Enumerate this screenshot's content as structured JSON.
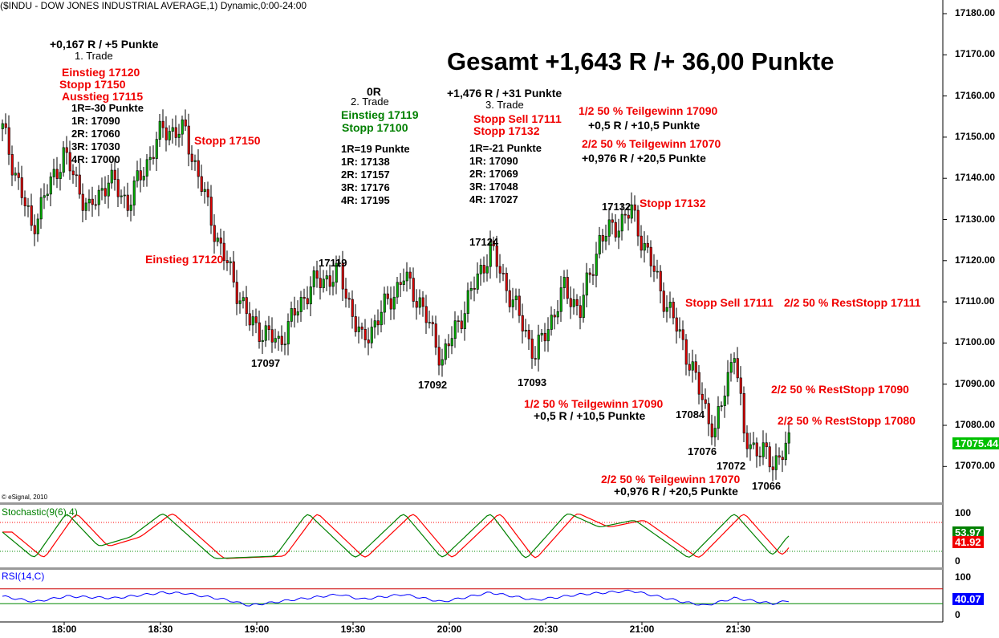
{
  "title": "($INDU - DOW JONES INDUSTRIAL AVERAGE,1) Dynamic,0:00-24:00",
  "copyright": "© eSignal, 2010",
  "colors": {
    "up": "#00b000",
    "down": "#e00000",
    "annotation_red": "#f00000",
    "annotation_green": "#008000",
    "rsi": "#0000ff",
    "stoch_k": "#008000",
    "stoch_d": "#ff0000"
  },
  "annotations": {
    "total": "Gesamt +1,643 R /+ 36,00 Punkte",
    "t1_result": "+0,167 R / +5 Punkte",
    "t1_label": "1. Trade",
    "t1_entry": "Einstieg 17120",
    "t1_stop": "Stopp 17150",
    "t1_exit": "Ausstieg 17115",
    "t1_r": "1R=-30 Punkte",
    "t1_1r": "1R: 17090",
    "t1_2r": "2R: 17060",
    "t1_3r": "3R: 17030",
    "t1_4r": "4R: 17000",
    "t1_stop_chart": "Stopp 17150",
    "t1_entry_chart": "Einstieg 17120",
    "t2_result": "0R",
    "t2_label": "2. Trade",
    "t2_entry": "Einstieg 17119",
    "t2_stop": "Stopp 17100",
    "t2_r": "1R=19 Punkte",
    "t2_1r": "1R: 17138",
    "t2_2r": "2R: 17157",
    "t2_3r": "3R: 17176",
    "t2_4r": "4R: 17195",
    "t3_result": "+1,476 R / +31 Punkte",
    "t3_label": "3. Trade",
    "t3_stopsell": "Stopp Sell 17111",
    "t3_stop": "Stopp 17132",
    "t3_r": "1R=-21 Punkte",
    "t3_1r": "1R: 17090",
    "t3_2r": "2R: 17069",
    "t3_3r": "3R: 17048",
    "t3_4r": "4R: 17027",
    "tp1_top": "1/2 50 % Teilgewinn 17090",
    "tp1_top_res": "+0,5 R / +10,5 Punkte",
    "tp2_top": "2/2 50 % Teilgewinn 17070",
    "tp2_top_res": "+0,976 R / +20,5 Punkte",
    "stop17132": "Stopp 17132",
    "stopsell_chart": "Stopp Sell 17111",
    "reststop17111": "2/2 50 % RestStopp 17111",
    "reststop17090": "2/2 50 % RestStopp 17090",
    "reststop17080": "2/2 50 % RestStopp 17080",
    "tp1_low": "1/2 50 % Teilgewinn 17090",
    "tp1_low_res": "+0,5 R / +10,5 Punkte",
    "tp2_low": "2/2 50 % Teilgewinn 17070",
    "tp2_low_res": "+0,976 R / +20,5 Punkte",
    "p17097": "17097",
    "p17119": "17119",
    "p17092": "17092",
    "p17124": "17124",
    "p17093": "17093",
    "p17132": "17132",
    "p17084": "17084",
    "p17076": "17076",
    "p17072": "17072",
    "p17066": "17066"
  },
  "chart_data": {
    "type": "candlestick",
    "title": "($INDU - DOW JONES INDUSTRIAL AVERAGE,1) Dynamic,0:00-24:00",
    "interval_minutes": 1,
    "start_time": "17:40",
    "price_ticks": [
      "17180.00",
      "17170.00",
      "17160.00",
      "17150.00",
      "17140.00",
      "17130.00",
      "17120.00",
      "17110.00",
      "17100.00",
      "17090.00",
      "17080.00",
      "17070.00"
    ],
    "ylim": [
      17061,
      17183
    ],
    "time_ticks": [
      "18:00",
      "18:30",
      "19:00",
      "19:30",
      "20:00",
      "20:30",
      "21:00",
      "21:30"
    ],
    "last_price": "17075.44",
    "price_pivots": [
      [
        0,
        17152
      ],
      [
        9,
        17128
      ],
      [
        19,
        17146
      ],
      [
        27,
        17132
      ],
      [
        33,
        17140
      ],
      [
        39,
        17134
      ],
      [
        50,
        17152
      ],
      [
        57,
        17151
      ],
      [
        67,
        17125
      ],
      [
        77,
        17105
      ],
      [
        86,
        17100
      ],
      [
        96,
        17114
      ],
      [
        105,
        17117
      ],
      [
        112,
        17100
      ],
      [
        125,
        17116
      ],
      [
        130,
        17110
      ],
      [
        137,
        17096
      ],
      [
        152,
        17123
      ],
      [
        166,
        17097
      ],
      [
        175,
        17113
      ],
      [
        180,
        17108
      ],
      [
        186,
        17125
      ],
      [
        196,
        17132
      ],
      [
        205,
        17113
      ],
      [
        212,
        17100
      ],
      [
        219,
        17084
      ],
      [
        222,
        17078
      ],
      [
        228,
        17099
      ],
      [
        231,
        17077
      ],
      [
        240,
        17071
      ],
      [
        245,
        17075
      ]
    ],
    "stochastic": {
      "label": "Stochastic(9(6),4)",
      "levels": [
        80,
        20
      ],
      "axis": [
        "100",
        "0"
      ],
      "k_last": "53.97",
      "d_last": "41.92",
      "k_pivots": [
        [
          0,
          60
        ],
        [
          10,
          5
        ],
        [
          20,
          100
        ],
        [
          30,
          30
        ],
        [
          40,
          50
        ],
        [
          50,
          100
        ],
        [
          66,
          5
        ],
        [
          85,
          10
        ],
        [
          95,
          100
        ],
        [
          110,
          5
        ],
        [
          125,
          100
        ],
        [
          137,
          5
        ],
        [
          152,
          100
        ],
        [
          163,
          3
        ],
        [
          176,
          100
        ],
        [
          186,
          70
        ],
        [
          197,
          85
        ],
        [
          214,
          5
        ],
        [
          228,
          100
        ],
        [
          240,
          10
        ],
        [
          245,
          54
        ]
      ]
    },
    "rsi": {
      "label": "RSI(14,C)",
      "levels": [
        70,
        30
      ],
      "axis": [
        "100",
        "0"
      ],
      "last": "40.07",
      "pivots": [
        [
          0,
          50
        ],
        [
          10,
          35
        ],
        [
          20,
          50
        ],
        [
          35,
          45
        ],
        [
          50,
          60
        ],
        [
          57,
          58
        ],
        [
          70,
          40
        ],
        [
          77,
          25
        ],
        [
          90,
          40
        ],
        [
          105,
          55
        ],
        [
          112,
          42
        ],
        [
          125,
          55
        ],
        [
          137,
          35
        ],
        [
          152,
          60
        ],
        [
          166,
          40
        ],
        [
          180,
          55
        ],
        [
          196,
          65
        ],
        [
          212,
          35
        ],
        [
          219,
          25
        ],
        [
          228,
          45
        ],
        [
          240,
          30
        ],
        [
          245,
          38
        ]
      ]
    }
  }
}
